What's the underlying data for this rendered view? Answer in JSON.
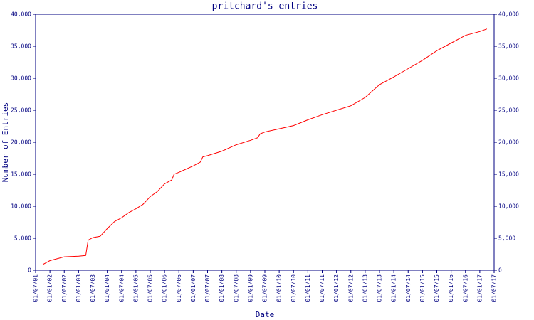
{
  "chart_data": {
    "type": "line",
    "title": "pritchard's entries",
    "xlabel": "Date",
    "ylabel": "Number of Entries",
    "x": [
      "01/10/01",
      "01/01/02",
      "01/07/02",
      "01/01/03",
      "01/04/03",
      "01/05/03",
      "01/07/03",
      "01/10/03",
      "01/01/04",
      "01/04/04",
      "01/07/04",
      "01/10/04",
      "01/01/05",
      "01/04/05",
      "01/07/05",
      "01/10/05",
      "01/01/06",
      "01/04/06",
      "01/05/06",
      "01/07/06",
      "01/01/07",
      "01/04/07",
      "01/05/07",
      "01/07/07",
      "01/01/08",
      "01/07/08",
      "01/01/09",
      "01/04/09",
      "01/05/09",
      "01/07/09",
      "01/01/10",
      "01/07/10",
      "01/01/11",
      "01/07/11",
      "01/01/12",
      "01/07/12",
      "01/01/13",
      "01/07/13",
      "01/01/14",
      "01/07/14",
      "01/01/15",
      "01/07/15",
      "01/01/16",
      "01/07/16",
      "01/01/17",
      "01/04/17"
    ],
    "series": [
      {
        "name": "entries",
        "color": "#ff0000",
        "values": [
          900,
          1500,
          2100,
          2200,
          2300,
          4700,
          5100,
          5300,
          6500,
          7600,
          8200,
          9000,
          9600,
          10300,
          11500,
          12300,
          13500,
          14100,
          15000,
          15300,
          16300,
          16900,
          17700,
          17900,
          18600,
          19600,
          20300,
          20700,
          21300,
          21600,
          22100,
          22600,
          23500,
          24300,
          25000,
          25700,
          27000,
          29000,
          30200,
          31500,
          32800,
          34300,
          35500,
          36700,
          37300,
          37700
        ]
      }
    ],
    "xlim": [
      "01/07/01",
      "01/07/17"
    ],
    "xticks": [
      "01/07/01",
      "01/01/02",
      "01/07/02",
      "01/01/03",
      "01/07/03",
      "01/01/04",
      "01/07/04",
      "01/01/05",
      "01/07/05",
      "01/01/06",
      "01/07/06",
      "01/01/07",
      "01/07/07",
      "01/01/08",
      "01/07/08",
      "01/01/09",
      "01/07/09",
      "01/01/10",
      "01/07/10",
      "01/01/11",
      "01/07/11",
      "01/01/12",
      "01/07/12",
      "01/01/13",
      "01/07/13",
      "01/01/14",
      "01/07/14",
      "01/01/15",
      "01/07/15",
      "01/01/16",
      "01/07/16",
      "01/01/17",
      "01/07/17"
    ],
    "ylim": [
      0,
      40000
    ],
    "yticks": [
      0,
      {
        "value": 5000,
        "label": "5,000"
      },
      {
        "value": 10000,
        "label": "10,000"
      },
      {
        "value": 15000,
        "label": "15,000"
      },
      {
        "value": 20000,
        "label": "20,000"
      },
      {
        "value": 25000,
        "label": "25,000"
      },
      {
        "value": 30000,
        "label": "30,000"
      },
      {
        "value": 35000,
        "label": "35,000"
      },
      {
        "value": 40000,
        "label": "40,000"
      }
    ],
    "y2lim": [
      0,
      40000
    ],
    "y2ticks": [
      0,
      {
        "value": 5000,
        "label": "5,000"
      },
      {
        "value": 10000,
        "label": "10,000"
      },
      {
        "value": 15000,
        "label": "15,000"
      },
      {
        "value": 20000,
        "label": "20,000"
      },
      {
        "value": 25000,
        "label": "25,000"
      },
      {
        "value": 30000,
        "label": "30,000"
      },
      {
        "value": 35000,
        "label": "35,000"
      },
      {
        "value": 40000,
        "label": "40,000"
      }
    ],
    "axis_color": "#000080"
  }
}
